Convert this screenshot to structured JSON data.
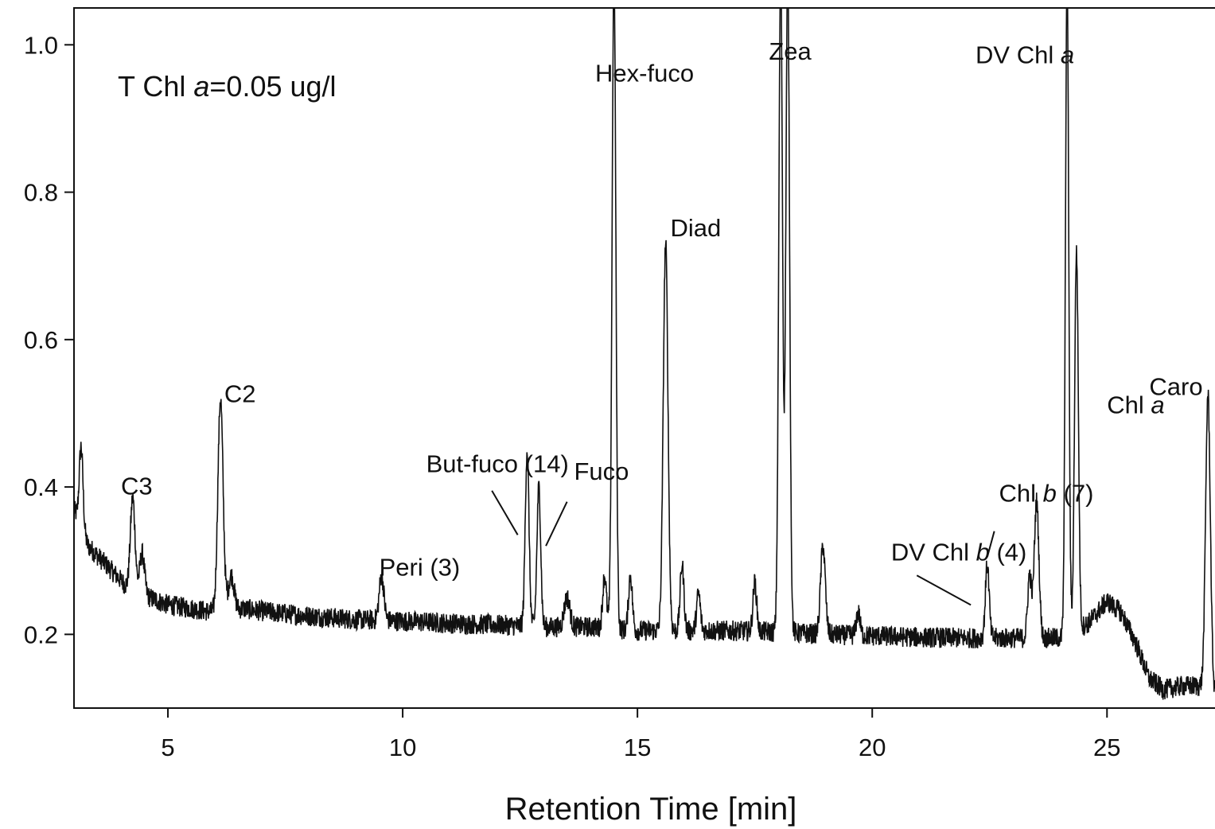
{
  "chart_data": {
    "type": "line",
    "title": "",
    "xlabel": "Retention Time [min]",
    "ylabel": "",
    "xlim": [
      3,
      27.3
    ],
    "ylim": [
      0.1,
      1.05
    ],
    "xticks": [
      5,
      10,
      15,
      20,
      25
    ],
    "yticks": [
      0.2,
      0.4,
      0.6,
      0.8,
      1.0
    ],
    "xtick_labels": [
      "5",
      "10",
      "15",
      "20",
      "25"
    ],
    "ytick_labels": [
      "0.2",
      "0.4",
      "0.6",
      "0.8",
      "1.0"
    ],
    "grid": false,
    "annotation": {
      "prefix": "T Chl ",
      "italic": "a",
      "suffix": "=0.05 ug/l"
    },
    "line_color": "#111111",
    "baseline": [
      [
        3.0,
        0.37
      ],
      [
        3.3,
        0.32
      ],
      [
        3.6,
        0.3
      ],
      [
        3.9,
        0.28
      ],
      [
        4.2,
        0.26
      ],
      [
        4.6,
        0.25
      ],
      [
        5.0,
        0.24
      ],
      [
        5.5,
        0.235
      ],
      [
        6.0,
        0.23
      ],
      [
        6.6,
        0.235
      ],
      [
        7.2,
        0.23
      ],
      [
        8.0,
        0.225
      ],
      [
        9.0,
        0.22
      ],
      [
        10.0,
        0.218
      ],
      [
        11.0,
        0.215
      ],
      [
        12.0,
        0.213
      ],
      [
        13.0,
        0.21
      ],
      [
        14.0,
        0.21
      ],
      [
        15.0,
        0.205
      ],
      [
        16.0,
        0.205
      ],
      [
        17.0,
        0.205
      ],
      [
        18.0,
        0.203
      ],
      [
        19.0,
        0.2
      ],
      [
        20.0,
        0.198
      ],
      [
        21.0,
        0.196
      ],
      [
        22.0,
        0.195
      ],
      [
        23.0,
        0.195
      ],
      [
        24.0,
        0.195
      ],
      [
        24.6,
        0.215
      ],
      [
        25.0,
        0.245
      ],
      [
        25.3,
        0.23
      ],
      [
        25.6,
        0.19
      ],
      [
        25.9,
        0.14
      ],
      [
        26.2,
        0.125
      ],
      [
        26.6,
        0.13
      ],
      [
        27.0,
        0.13
      ],
      [
        27.3,
        0.12
      ]
    ],
    "peaks": [
      {
        "rt": 3.15,
        "height": 0.455,
        "width": 0.04
      },
      {
        "rt": 4.25,
        "height": 0.385,
        "width": 0.05
      },
      {
        "rt": 4.45,
        "height": 0.31,
        "width": 0.05
      },
      {
        "rt": 6.12,
        "height": 0.52,
        "width": 0.055
      },
      {
        "rt": 6.35,
        "height": 0.28,
        "width": 0.06
      },
      {
        "rt": 9.55,
        "height": 0.28,
        "width": 0.05
      },
      {
        "rt": 12.65,
        "height": 0.45,
        "width": 0.04
      },
      {
        "rt": 12.9,
        "height": 0.4,
        "width": 0.04
      },
      {
        "rt": 13.5,
        "height": 0.25,
        "width": 0.06
      },
      {
        "rt": 14.3,
        "height": 0.28,
        "width": 0.04
      },
      {
        "rt": 14.5,
        "height": 1.1,
        "width": 0.04
      },
      {
        "rt": 14.85,
        "height": 0.28,
        "width": 0.04
      },
      {
        "rt": 15.6,
        "height": 0.73,
        "width": 0.05
      },
      {
        "rt": 15.95,
        "height": 0.295,
        "width": 0.04
      },
      {
        "rt": 16.3,
        "height": 0.255,
        "width": 0.04
      },
      {
        "rt": 17.5,
        "height": 0.27,
        "width": 0.04
      },
      {
        "rt": 18.05,
        "height": 1.1,
        "width": 0.04
      },
      {
        "rt": 18.2,
        "height": 1.1,
        "width": 0.04
      },
      {
        "rt": 18.95,
        "height": 0.32,
        "width": 0.05
      },
      {
        "rt": 19.7,
        "height": 0.23,
        "width": 0.04
      },
      {
        "rt": 22.45,
        "height": 0.295,
        "width": 0.04
      },
      {
        "rt": 23.35,
        "height": 0.28,
        "width": 0.04
      },
      {
        "rt": 23.5,
        "height": 0.38,
        "width": 0.05
      },
      {
        "rt": 24.15,
        "height": 1.1,
        "width": 0.035
      },
      {
        "rt": 24.35,
        "height": 0.72,
        "width": 0.04
      },
      {
        "rt": 27.15,
        "height": 0.525,
        "width": 0.05
      }
    ],
    "peak_labels": [
      {
        "parts": [
          {
            "t": "C3"
          }
        ],
        "x": 4.0,
        "y": 0.39
      },
      {
        "parts": [
          {
            "t": "C2"
          }
        ],
        "x": 6.2,
        "y": 0.515
      },
      {
        "parts": [
          {
            "t": "Peri (3)"
          }
        ],
        "x": 9.5,
        "y": 0.28
      },
      {
        "parts": [
          {
            "t": "But-fuco (14)"
          }
        ],
        "x": 10.5,
        "y": 0.42
      },
      {
        "parts": [
          {
            "t": "Fuco"
          }
        ],
        "x": 13.65,
        "y": 0.41
      },
      {
        "parts": [
          {
            "t": "Hex-fuco"
          }
        ],
        "x": 14.1,
        "y": 0.95
      },
      {
        "parts": [
          {
            "t": "Diad"
          }
        ],
        "x": 15.7,
        "y": 0.74
      },
      {
        "parts": [
          {
            "t": "Zea"
          }
        ],
        "x": 17.8,
        "y": 0.98
      },
      {
        "parts": [
          {
            "t": "DV Chl "
          },
          {
            "t": "a",
            "i": true
          }
        ],
        "x": 22.2,
        "y": 0.975
      },
      {
        "parts": [
          {
            "t": "Chl "
          },
          {
            "t": "a",
            "i": true
          }
        ],
        "x": 25.0,
        "y": 0.5
      },
      {
        "parts": [
          {
            "t": "DV Chl "
          },
          {
            "t": "b",
            "i": true
          },
          {
            "t": " (4)"
          }
        ],
        "x": 20.4,
        "y": 0.3
      },
      {
        "parts": [
          {
            "t": "Chl "
          },
          {
            "t": "b",
            "i": true
          },
          {
            "t": " (7)"
          }
        ],
        "x": 22.7,
        "y": 0.38
      },
      {
        "parts": [
          {
            "t": "Caro"
          }
        ],
        "x": 25.9,
        "y": 0.525
      }
    ],
    "leader_lines": [
      {
        "x1": 11.9,
        "y1": 0.395,
        "x2": 12.45,
        "y2": 0.335
      },
      {
        "x1": 13.5,
        "y1": 0.38,
        "x2": 13.05,
        "y2": 0.32
      },
      {
        "x1": 20.95,
        "y1": 0.28,
        "x2": 22.1,
        "y2": 0.24
      },
      {
        "x1": 22.6,
        "y1": 0.34,
        "x2": 22.45,
        "y2": 0.305
      }
    ]
  }
}
